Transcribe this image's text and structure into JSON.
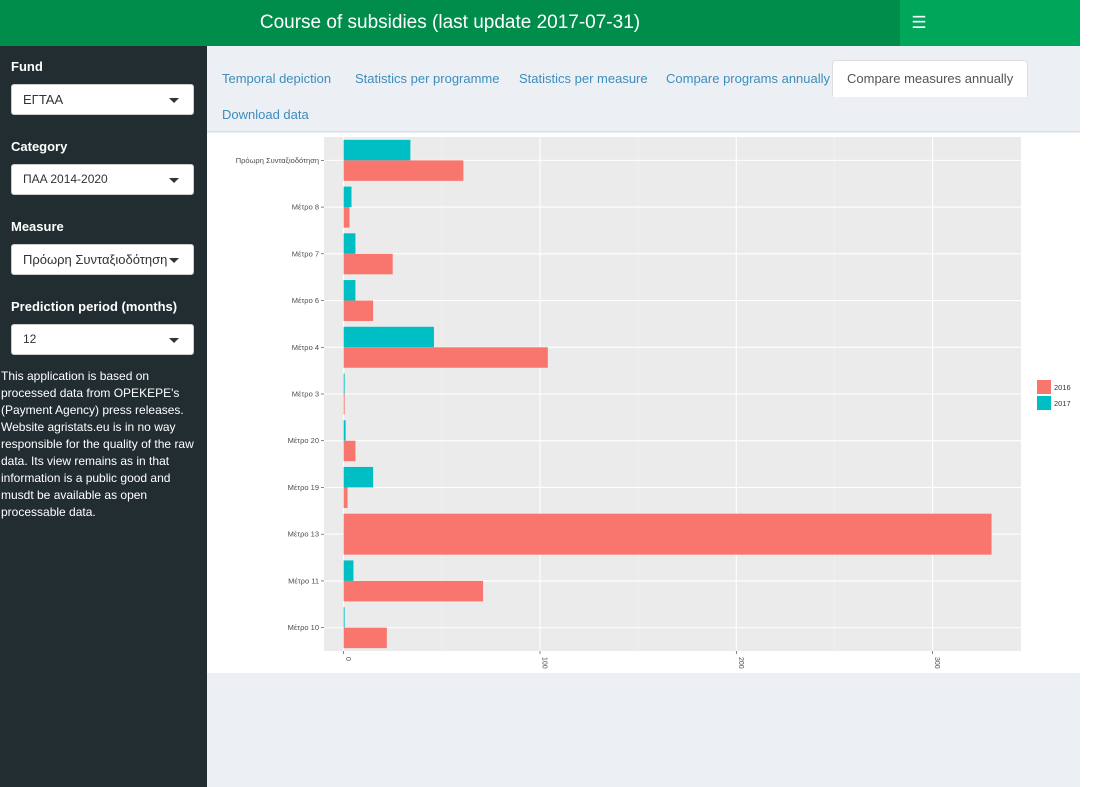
{
  "header": {
    "title": "Course of subsidies (last update 2017-07-31)",
    "menu_icon": "bars-icon"
  },
  "sidebar": {
    "fund": {
      "label": "Fund",
      "value": "ΕΓΤΑΑ"
    },
    "category": {
      "label": "Category",
      "value": "ΠΑΑ 2014-2020"
    },
    "measure": {
      "label": "Measure",
      "value": "Πρόωρη Συνταξιοδότηση"
    },
    "prediction": {
      "label": "Prediction period (months)",
      "value": "12"
    },
    "about": "This application is based on processed data from OPEKEPE's (Payment Agency) press releases. Website agristats.eu is in no way responsible for the quality of the raw data. Its view remains as in that information is a public good and musdt be available as open processable data."
  },
  "tabs": [
    {
      "label": "Temporal depiction"
    },
    {
      "label": "Statistics per programme"
    },
    {
      "label": "Statistics per measure"
    },
    {
      "label": "Compare programs annually"
    },
    {
      "label": "Compare measures annually",
      "active": true
    },
    {
      "label": "Download data"
    }
  ],
  "colors": {
    "header": "#008d4c",
    "header_bar": "#00a65a",
    "sidebar": "#222d32",
    "link": "#3c8dbc",
    "series_2016": "#f8766d",
    "series_2017": "#00bfc4"
  },
  "chart_data": {
    "type": "bar",
    "orientation": "horizontal",
    "categories": [
      "Πρόωρη Συνταξιοδότηση",
      "Μέτρο 8",
      "Μέτρο 7",
      "Μέτρο 6",
      "Μέτρο 4",
      "Μέτρο 3",
      "Μέτρο 20",
      "Μέτρο 19",
      "Μέτρο 13",
      "Μέτρο 11",
      "Μέτρο 10"
    ],
    "series": [
      {
        "name": "2016",
        "color": "#f8766d",
        "values": [
          61,
          3,
          25,
          15,
          104,
          0.5,
          6,
          2,
          330,
          71,
          22
        ]
      },
      {
        "name": "2017",
        "color": "#00bfc4",
        "values": [
          34,
          4,
          6,
          6,
          46,
          0.5,
          1,
          15,
          null,
          5,
          0.5
        ]
      }
    ],
    "x_ticks": [
      "0",
      "100",
      "200",
      "300"
    ],
    "xlim": [
      -10,
      345
    ],
    "grid": true,
    "legend_position": "right",
    "xlabel": "",
    "ylabel": "",
    "title": ""
  }
}
